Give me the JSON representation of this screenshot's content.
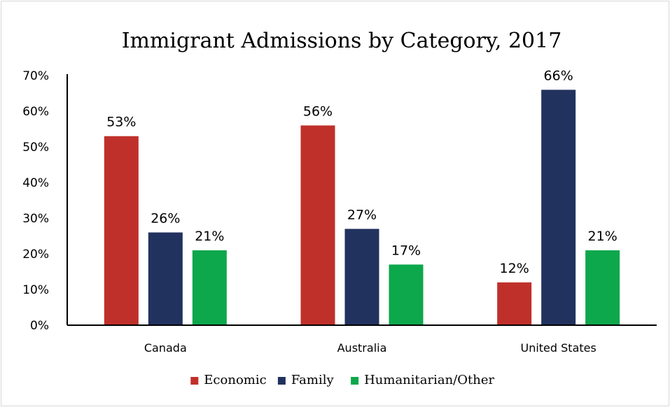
{
  "chart_data": {
    "type": "bar",
    "title": "Immigrant Admissions by Category, 2017",
    "xlabel": "",
    "ylabel": "",
    "categories": [
      "Canada",
      "Australia",
      "United States"
    ],
    "series": [
      {
        "name": "Economic",
        "values": [
          53,
          56,
          12
        ],
        "labels": [
          "53%",
          "56%",
          "12%"
        ],
        "color": "#c0302a"
      },
      {
        "name": "Family",
        "values": [
          26,
          27,
          66
        ],
        "labels": [
          "26%",
          "27%",
          "66%"
        ],
        "color": "#22325e"
      },
      {
        "name": "Humanitarian/Other",
        "values": [
          21,
          17,
          21
        ],
        "labels": [
          "21%",
          "17%",
          "21%"
        ],
        "color": "#0da74c"
      }
    ],
    "ylim": [
      0,
      70
    ],
    "yticks": [
      0,
      10,
      20,
      30,
      40,
      50,
      60,
      70
    ],
    "ytick_labels": [
      "0%",
      "10%",
      "20%",
      "30%",
      "40%",
      "50%",
      "60%",
      "70%"
    ],
    "grid": false,
    "legend_position": "bottom"
  }
}
